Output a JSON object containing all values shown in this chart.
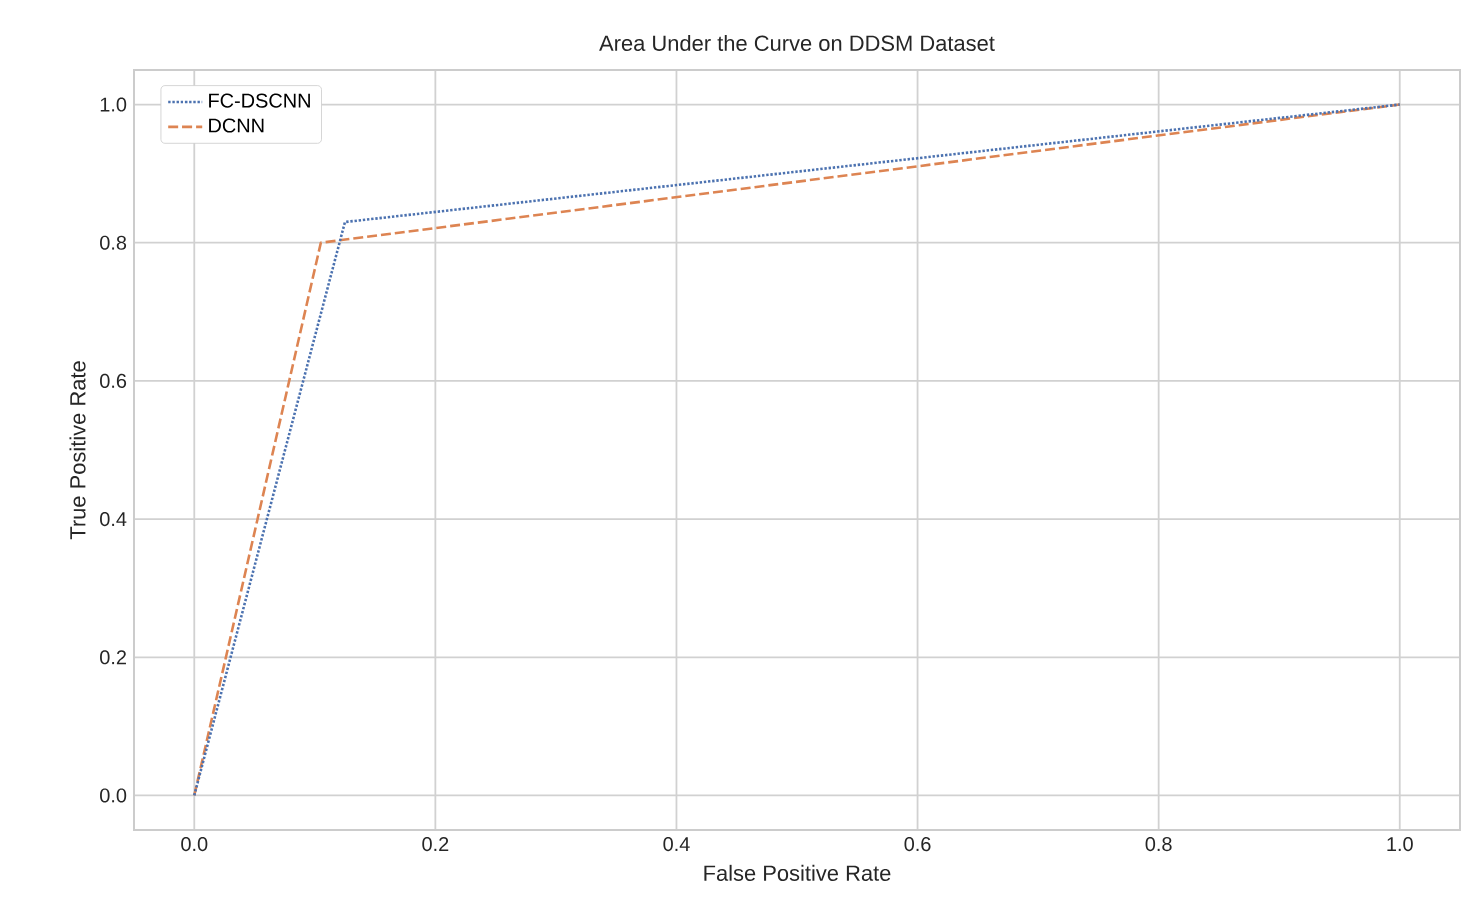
{
  "chart_data": {
    "type": "line",
    "title": "Area Under the  Curve on DDSM Dataset",
    "xlabel": "False Positive Rate",
    "ylabel": "True Positive Rate",
    "series": [
      {
        "name": "FC-DSCNN",
        "color": "#4c72b0",
        "line_style": "dotted",
        "x": [
          0,
          0.125,
          1
        ],
        "values": [
          0,
          0.83,
          1
        ]
      },
      {
        "name": "DCNN",
        "color": "#dd8452",
        "line_style": "dashed",
        "x": [
          0,
          0.105,
          1
        ],
        "values": [
          0,
          0.8,
          1
        ]
      }
    ],
    "xlim": [
      -0.05,
      1.05
    ],
    "ylim": [
      -0.05,
      1.05
    ],
    "xticks": [
      {
        "value": 0,
        "label": "0.0"
      },
      0.2,
      0.4,
      0.6,
      0.8,
      {
        "value": 1,
        "label": "1.0"
      }
    ],
    "yticks": [
      {
        "value": 0,
        "label": "0.0"
      },
      0.2,
      0.4,
      0.6,
      0.8,
      {
        "value": 1,
        "label": "1.0"
      }
    ],
    "grid": true,
    "legend": "top left"
  }
}
